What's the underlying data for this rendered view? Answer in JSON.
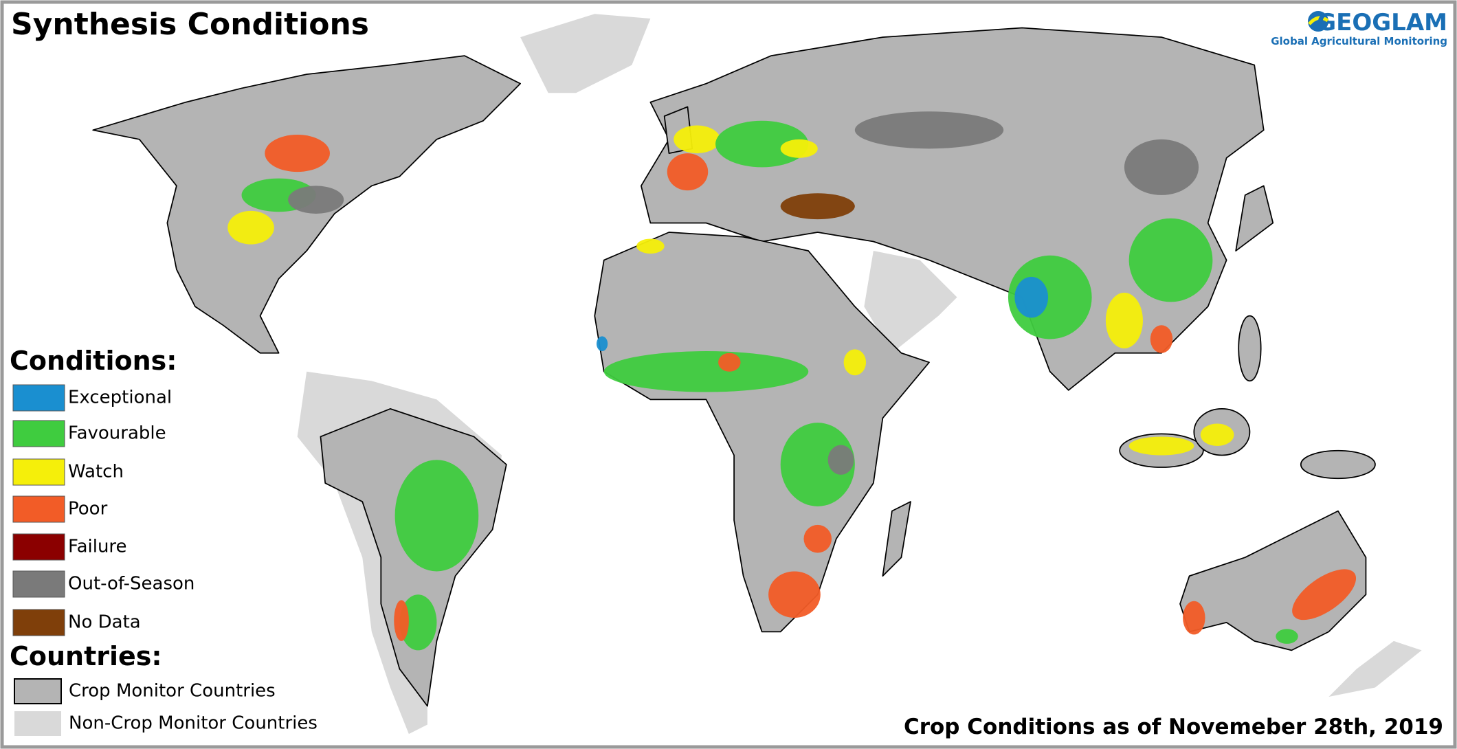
{
  "title": "Synthesis Conditions",
  "logo": {
    "name": "GEOGLAM",
    "subtitle": "Global Agricultural Monitoring"
  },
  "legend": {
    "conditions": {
      "heading": "Conditions:",
      "items": [
        {
          "label": "Exceptional",
          "color": "#1a8fd0"
        },
        {
          "label": "Favourable",
          "color": "#3fcc3f"
        },
        {
          "label": "Watch",
          "color": "#f5ef0a"
        },
        {
          "label": "Poor",
          "color": "#f25c27"
        },
        {
          "label": "Failure",
          "color": "#8b0000"
        },
        {
          "label": "Out-of-Season",
          "color": "#7a7a7a"
        },
        {
          "label": "No Data",
          "color": "#7f3f0a"
        }
      ]
    },
    "countries": {
      "heading": "Countries:",
      "items": [
        {
          "label": "Crop Monitor Countries",
          "color": "#b4b4b4"
        },
        {
          "label": "Non-Crop Monitor Countries",
          "color": "#d9d9d9"
        }
      ]
    }
  },
  "footer": "Crop Conditions as of Novemeber 28th, 2019"
}
